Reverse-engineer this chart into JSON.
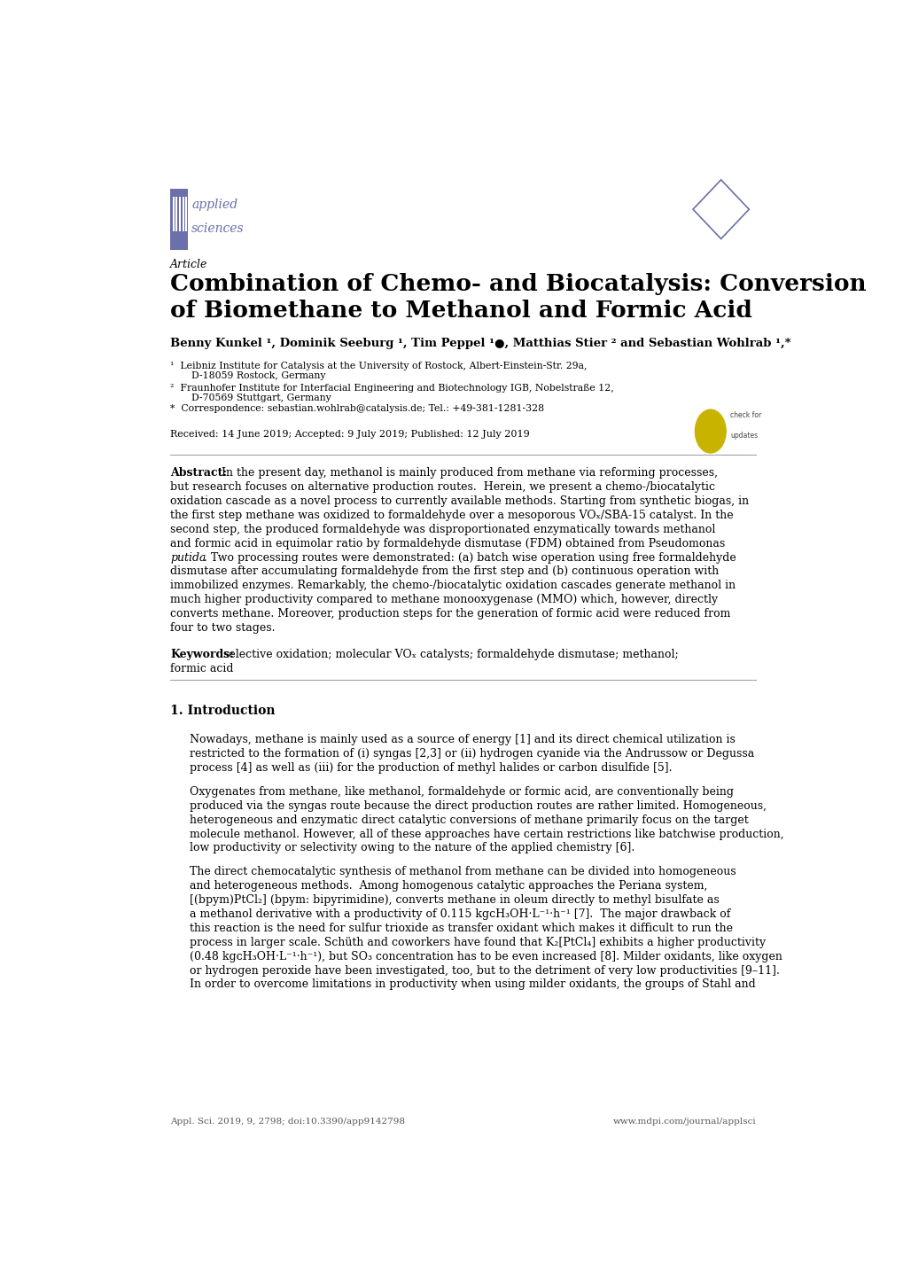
{
  "background_color": "#ffffff",
  "page_width": 10.2,
  "page_height": 14.42,
  "logo_color": "#6b6faa",
  "text_color": "#000000",
  "gray_color": "#555555",
  "title_line1": "Combination of Chemo- and Biocatalysis: Conversion",
  "title_line2": "of Biomethane to Methanol and Formic Acid",
  "footer_left": "Appl. Sci. 2019, 9, 2798; doi:10.3390/app9142798",
  "footer_right": "www.mdpi.com/journal/applsci"
}
